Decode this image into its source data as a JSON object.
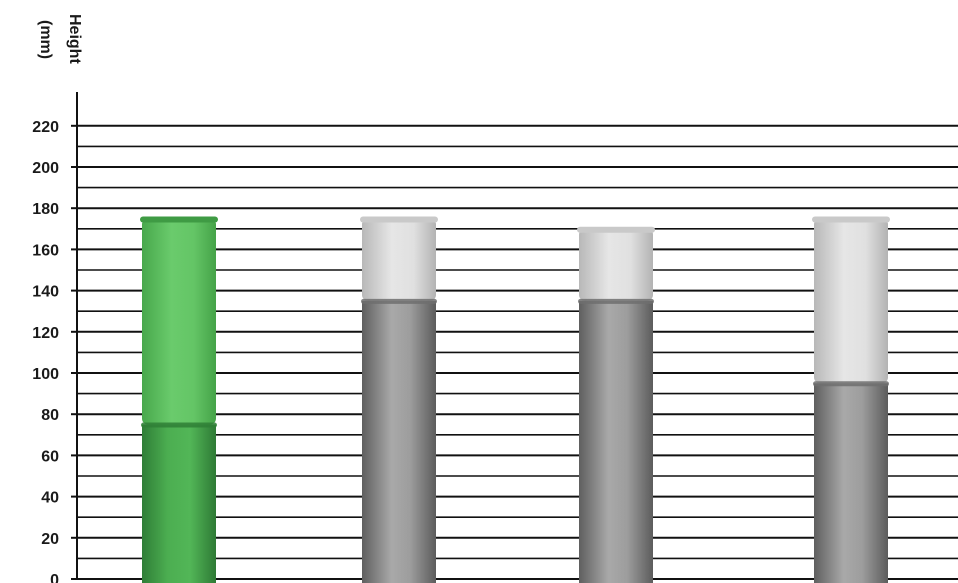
{
  "chart_data": {
    "type": "bar",
    "ylabel_line1": "Height",
    "ylabel_line2": "(mm)",
    "ylim": [
      0,
      220
    ],
    "yticks": [
      0,
      20,
      40,
      60,
      80,
      100,
      120,
      140,
      160,
      180,
      200,
      220
    ],
    "grid": true,
    "minor_grid_step": 10,
    "colors": {
      "highlight_lower": "#3f9e48",
      "highlight_upper": "#5bbf5f",
      "gray_lower": "#8a8a8a",
      "gray_upper": "#d2d2d2",
      "grid": "#111111"
    },
    "bars": [
      {
        "lower": 75,
        "total": 175,
        "highlight": true
      },
      {
        "lower": 135,
        "total": 175,
        "highlight": false
      },
      {
        "lower": 135,
        "total": 170,
        "highlight": false
      },
      {
        "lower": 95,
        "total": 175,
        "highlight": false
      }
    ]
  }
}
